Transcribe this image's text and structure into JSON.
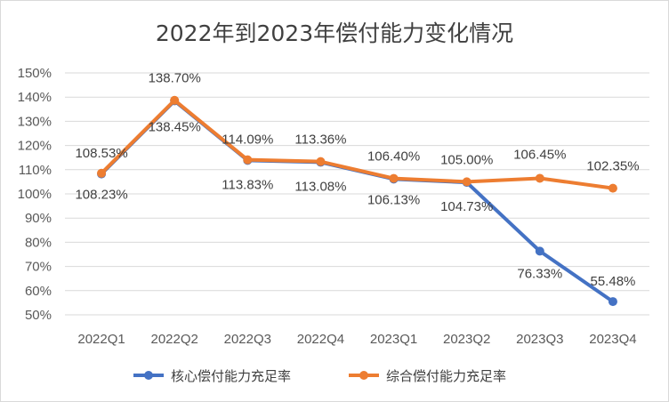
{
  "chart_data": {
    "type": "line",
    "title": "2022年到2023年偿付能力变化情况",
    "categories": [
      "2022Q1",
      "2022Q2",
      "2022Q3",
      "2022Q4",
      "2023Q1",
      "2023Q2",
      "2023Q3",
      "2023Q4"
    ],
    "y_ticks": [
      "50%",
      "60%",
      "70%",
      "80%",
      "90%",
      "100%",
      "110%",
      "120%",
      "130%",
      "140%",
      "150%"
    ],
    "ylim": [
      50,
      150
    ],
    "grid": true,
    "legend_position": "bottom",
    "series": [
      {
        "name": "核心偿付能力充足率",
        "color": "#4472c4",
        "values": [
          108.23,
          138.45,
          113.83,
          113.08,
          106.13,
          104.73,
          76.33,
          55.48
        ],
        "labels": [
          "108.23%",
          "138.45%",
          "113.83%",
          "113.08%",
          "106.13%",
          "104.73%",
          "76.33%",
          "55.48%"
        ]
      },
      {
        "name": "综合偿付能力充足率",
        "color": "#ed7d31",
        "values": [
          108.53,
          138.7,
          114.09,
          113.36,
          106.4,
          105.0,
          106.45,
          102.35
        ],
        "labels": [
          "108.53%",
          "138.70%",
          "114.09%",
          "113.36%",
          "106.40%",
          "105.00%",
          "106.45%",
          "102.35%"
        ]
      }
    ]
  }
}
